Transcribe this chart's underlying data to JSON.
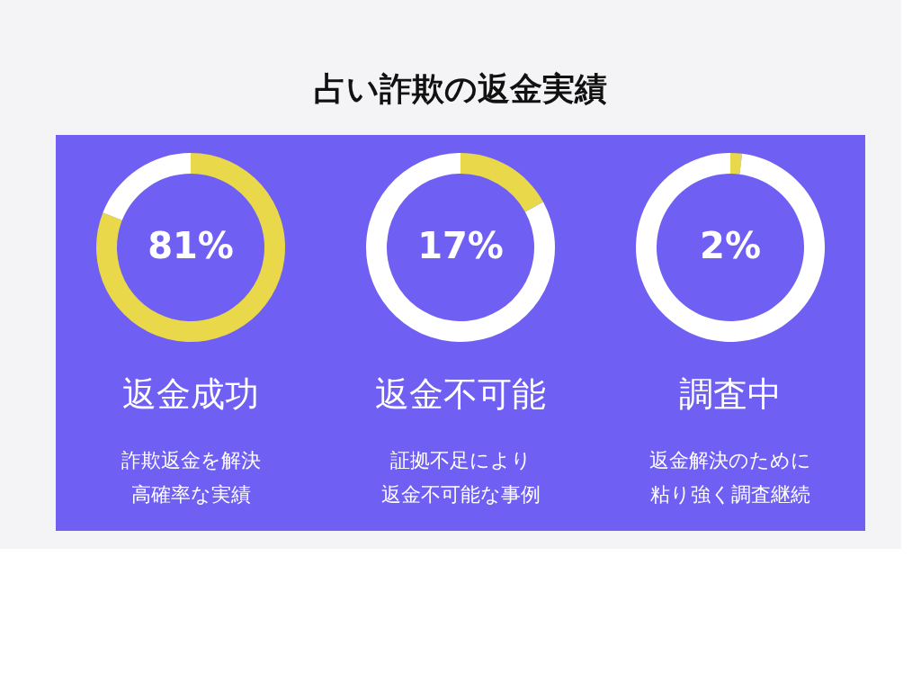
{
  "chart_data": [
    {
      "type": "other",
      "title": "占い詐欺の返金実績"
    },
    {
      "type": "donut",
      "title": "返金成功",
      "categories": [
        null,
        null
      ],
      "values": [
        81,
        19
      ],
      "colors": [
        "#e8d84a",
        "#ffffff"
      ],
      "value_labels": [
        "81%",
        null
      ],
      "annotations": [
        "詐欺返金を解決",
        "高確率な実績"
      ]
    },
    {
      "type": "donut",
      "title": "返金不可能",
      "categories": [
        null,
        null
      ],
      "values": [
        17,
        83
      ],
      "colors": [
        "#e8d84a",
        "#ffffff"
      ],
      "value_labels": [
        "17%",
        null
      ],
      "annotations": [
        "証拠不足により",
        "返金不可能な事例"
      ]
    },
    {
      "type": "donut",
      "title": "調査中",
      "categories": [
        null,
        null
      ],
      "values": [
        2,
        98
      ],
      "colors": [
        "#e8d84a",
        "#ffffff"
      ],
      "value_labels": [
        "2%",
        null
      ],
      "annotations": [
        "返金解決のために",
        "粘り強く調査継続"
      ]
    }
  ]
}
